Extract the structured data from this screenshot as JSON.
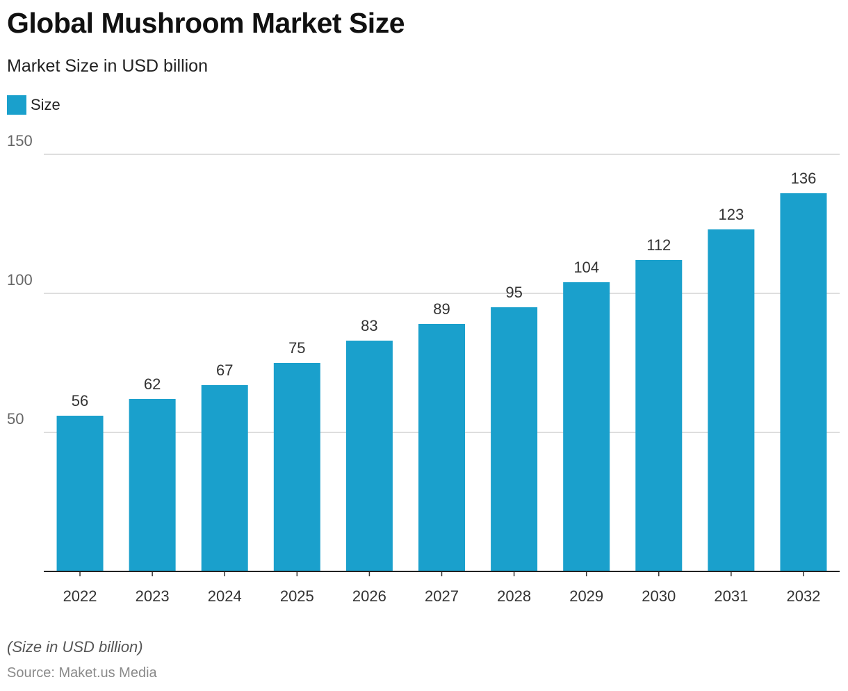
{
  "title": "Global Mushroom Market Size",
  "subtitle": "Market Size in USD billion",
  "legend": {
    "label": "Size",
    "color": "#1aa0cc"
  },
  "footnote": "(Size in USD billion)",
  "source": "Source: Maket.us Media",
  "chart_data": {
    "type": "bar",
    "categories": [
      "2022",
      "2023",
      "2024",
      "2025",
      "2026",
      "2027",
      "2028",
      "2029",
      "2030",
      "2031",
      "2032"
    ],
    "series": [
      {
        "name": "Size",
        "values": [
          56,
          62,
          67,
          75,
          83,
          89,
          95,
          104,
          112,
          123,
          136
        ],
        "color": "#1aa0cc"
      }
    ],
    "yticks": [
      50,
      100,
      150
    ],
    "ylim": [
      0,
      150
    ],
    "grid": true,
    "data_labels": true,
    "legend_position": "top-left"
  }
}
